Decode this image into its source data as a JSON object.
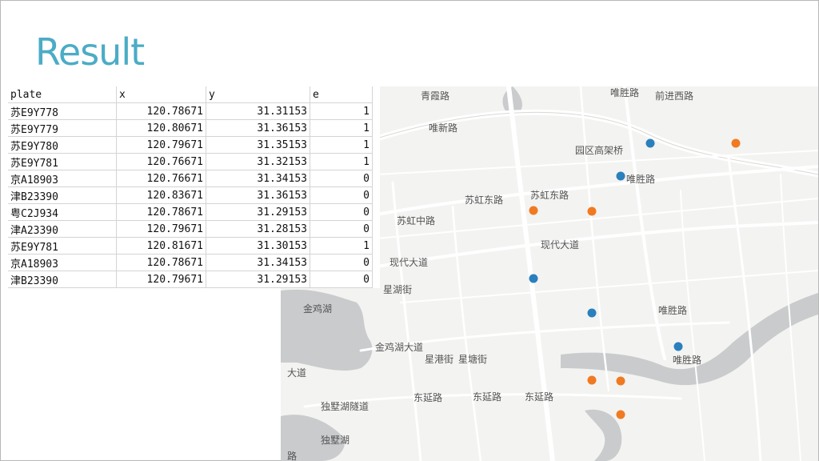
{
  "slide": {
    "title": "Result"
  },
  "table": {
    "headers": [
      "plate",
      "x",
      "y",
      "e"
    ],
    "rows": [
      [
        "苏E9Y778",
        "120.78671",
        "31.31153",
        "1"
      ],
      [
        "苏E9Y779",
        "120.80671",
        "31.36153",
        "1"
      ],
      [
        "苏E9Y780",
        "120.79671",
        "31.35153",
        "1"
      ],
      [
        "苏E9Y781",
        "120.76671",
        "31.32153",
        "1"
      ],
      [
        "京A18903",
        "120.76671",
        "31.34153",
        "0"
      ],
      [
        "津B23390",
        "120.83671",
        "31.36153",
        "0"
      ],
      [
        "粤C2J934",
        "120.78671",
        "31.29153",
        "0"
      ],
      [
        "津A23390",
        "120.79671",
        "31.28153",
        "0"
      ],
      [
        "苏E9Y781",
        "120.81671",
        "31.30153",
        "1"
      ],
      [
        "京A18903",
        "120.78671",
        "31.34153",
        "0"
      ],
      [
        "津B23390",
        "120.79671",
        "31.29153",
        "0"
      ]
    ]
  },
  "map": {
    "labels": [
      "青霞路",
      "唯胜路",
      "前进西路",
      "唯新路",
      "园区高架桥",
      "唯胜路",
      "苏虹东路",
      "苏虹东路",
      "苏虹中路",
      "现代大道",
      "现代大道",
      "星湖街",
      "金鸡湖",
      "唯胜路",
      "唯胜路",
      "金鸡湖大道",
      "星港街",
      "星塘街",
      "东延路",
      "东延路",
      "东延路",
      "独墅湖隧道",
      "独墅湖",
      "大道",
      "路"
    ],
    "colors": {
      "positive": "#2a7fbd",
      "negative": "#f07a22"
    },
    "markers": [
      {
        "e": 1,
        "name": "blue-marker"
      },
      {
        "e": 1,
        "name": "blue-marker"
      },
      {
        "e": 1,
        "name": "blue-marker"
      },
      {
        "e": 1,
        "name": "blue-marker"
      },
      {
        "e": 1,
        "name": "blue-marker"
      },
      {
        "e": 0,
        "name": "orange-marker"
      },
      {
        "e": 0,
        "name": "orange-marker"
      },
      {
        "e": 0,
        "name": "orange-marker"
      },
      {
        "e": 0,
        "name": "orange-marker"
      },
      {
        "e": 0,
        "name": "orange-marker"
      },
      {
        "e": 0,
        "name": "orange-marker"
      }
    ]
  }
}
